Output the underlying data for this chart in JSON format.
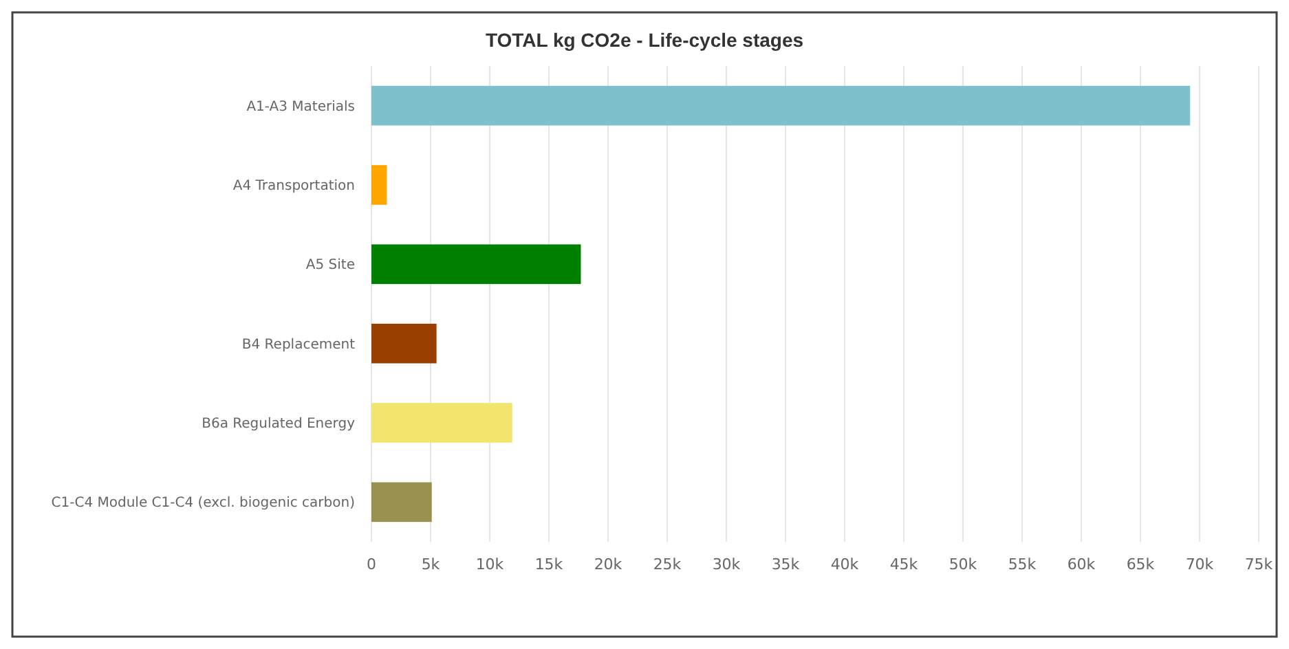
{
  "chart_data": {
    "type": "bar",
    "orientation": "horizontal",
    "title": "TOTAL kg CO2e - Life-cycle stages",
    "categories": [
      "A1-A3 Materials",
      "A4 Transportation",
      "A5 Site",
      "B4 Replacement",
      "B6a Regulated Energy",
      "C1-C4 Module C1-C4 (excl. biogenic carbon)"
    ],
    "values": [
      69200,
      1300,
      17700,
      5500,
      11900,
      5100
    ],
    "colors": [
      "#7fc1cb",
      "#ffa500",
      "#008000",
      "#994000",
      "#f2e56e",
      "#9b914f"
    ],
    "xlim": [
      0,
      75000
    ],
    "xticks": [
      0,
      {
        "value": 5000,
        "label": "5k"
      },
      {
        "value": 10000,
        "label": "10k"
      },
      {
        "value": 15000,
        "label": "15k"
      },
      {
        "value": 20000,
        "label": "20k"
      },
      {
        "value": 25000,
        "label": "25k"
      },
      {
        "value": 30000,
        "label": "30k"
      },
      {
        "value": 35000,
        "label": "35k"
      },
      {
        "value": 40000,
        "label": "40k"
      },
      {
        "value": 45000,
        "label": "45k"
      },
      {
        "value": 50000,
        "label": "50k"
      },
      {
        "value": 55000,
        "label": "55k"
      },
      {
        "value": 60000,
        "label": "60k"
      },
      {
        "value": 65000,
        "label": "65k"
      },
      {
        "value": 70000,
        "label": "70k"
      },
      {
        "value": 75000,
        "label": "75k"
      }
    ],
    "grid": "x"
  }
}
